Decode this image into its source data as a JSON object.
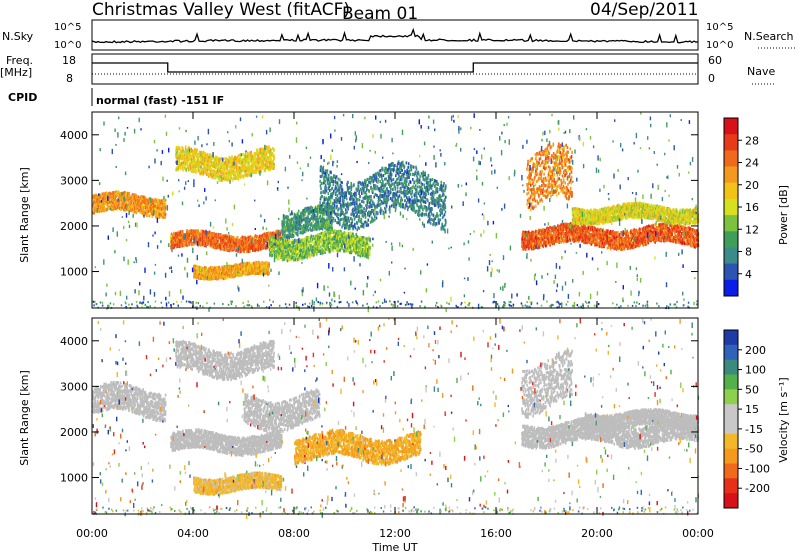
{
  "header": {
    "title": "Christmas Valley West (fitACF)",
    "beam": "Beam 01",
    "date": "04/Sep/2011"
  },
  "top_panels": {
    "nsky_label": "N.Sky",
    "nsearch_label": "N.Search",
    "nsky_ticks": [
      "10^5",
      "10^0"
    ],
    "nsearch_ticks": [
      "10^5",
      "10^0"
    ],
    "freq_label": "Freq.",
    "freq_unit": "[MHz]",
    "freq_ticks": [
      "18",
      "8"
    ],
    "nave_label": "Nave",
    "nave_ticks": [
      "60",
      "0"
    ],
    "cpid_label": "CPID",
    "cpid_text": "normal (fast) -151 IF"
  },
  "colors": {
    "power_scale": [
      "#0a1ee6",
      "#2b55b0",
      "#3d8a8a",
      "#3f9e5a",
      "#7cc23e",
      "#d6e020",
      "#f2c218",
      "#f39a1e",
      "#f06a1c",
      "#e63a18",
      "#d8101a"
    ],
    "velocity_scale": [
      "#1e3ba8",
      "#2f62b8",
      "#3b8a7e",
      "#54b04a",
      "#8ed04c",
      "#c8c8c8",
      "#c8c8c8",
      "#f2b82a",
      "#f39a1e",
      "#f06a1c",
      "#e6301a",
      "#d8101a"
    ],
    "ground_scatter": "#bdbdbd"
  },
  "chart_data": [
    {
      "type": "heatmap",
      "panel": "power",
      "xlabel": "",
      "ylabel": "Slant Range [km]",
      "ylim": [
        200,
        4500
      ],
      "xlim_hours": [
        0,
        24
      ],
      "yticks": [
        "1000",
        "2000",
        "3000",
        "4000"
      ],
      "colorbar_label": "Power [dB]",
      "colorbar_ticks": [
        "4",
        "8",
        "12",
        "16",
        "20",
        "24",
        "28"
      ],
      "colorbar_range": [
        0,
        30
      ],
      "features": [
        {
          "t0": 0.0,
          "t1": 2.9,
          "r": 2500,
          "w": 300,
          "level": 21
        },
        {
          "t0": 3.1,
          "t1": 7.5,
          "r": 1700,
          "w": 250,
          "level": 24
        },
        {
          "t0": 3.3,
          "t1": 7.2,
          "r": 3400,
          "w": 400,
          "level": 17
        },
        {
          "t0": 4.0,
          "t1": 7.0,
          "r": 1050,
          "w": 200,
          "level": 20
        },
        {
          "t0": 7.0,
          "t1": 11.0,
          "r": 1600,
          "w": 350,
          "level": 12
        },
        {
          "t0": 7.5,
          "t1": 9.5,
          "r": 2100,
          "w": 400,
          "level": 8
        },
        {
          "t0": 9.0,
          "t1": 14.0,
          "r": 2700,
          "w": 800,
          "level": 6
        },
        {
          "t0": 17.0,
          "t1": 24.0,
          "r": 1800,
          "w": 300,
          "level": 25
        },
        {
          "t0": 17.2,
          "t1": 19.0,
          "r": 3000,
          "w": 900,
          "level": 22
        },
        {
          "t0": 19.0,
          "t1": 24.0,
          "r": 2300,
          "w": 250,
          "level": 16
        }
      ]
    },
    {
      "type": "heatmap",
      "panel": "velocity",
      "xlabel": "Time UT",
      "ylabel": "Slant Range [km]",
      "ylim": [
        200,
        4500
      ],
      "xlim_hours": [
        0,
        24
      ],
      "xticks": [
        "00:00",
        "04:00",
        "08:00",
        "12:00",
        "16:00",
        "20:00",
        "00:00"
      ],
      "yticks": [
        "1000",
        "2000",
        "3000",
        "4000"
      ],
      "colorbar_label": "Velocity [m s⁻¹]",
      "colorbar_ticks": [
        "200",
        "100",
        "50",
        "15",
        "-15",
        "-50",
        "-100",
        "-200"
      ],
      "colorbar_range": [
        -250,
        250
      ],
      "features": [
        {
          "t0": 0.0,
          "t1": 2.9,
          "r": 2700,
          "w": 450,
          "level": 0
        },
        {
          "t0": 3.1,
          "t1": 7.5,
          "r": 1800,
          "w": 300,
          "level": 0
        },
        {
          "t0": 3.3,
          "t1": 7.2,
          "r": 3600,
          "w": 450,
          "level": 0
        },
        {
          "t0": 4.0,
          "t1": 7.5,
          "r": 900,
          "w": 250,
          "level": -60
        },
        {
          "t0": 8.0,
          "t1": 13.0,
          "r": 1700,
          "w": 400,
          "level": -80
        },
        {
          "t0": 6.0,
          "t1": 9.0,
          "r": 2500,
          "w": 500,
          "level": 0
        },
        {
          "t0": 17.0,
          "t1": 24.0,
          "r": 2000,
          "w": 350,
          "level": 0
        },
        {
          "t0": 17.0,
          "t1": 19.0,
          "r": 3100,
          "w": 800,
          "level": 0
        },
        {
          "t0": 19.5,
          "t1": 24.0,
          "r": 2300,
          "w": 250,
          "level": 0
        }
      ]
    }
  ]
}
